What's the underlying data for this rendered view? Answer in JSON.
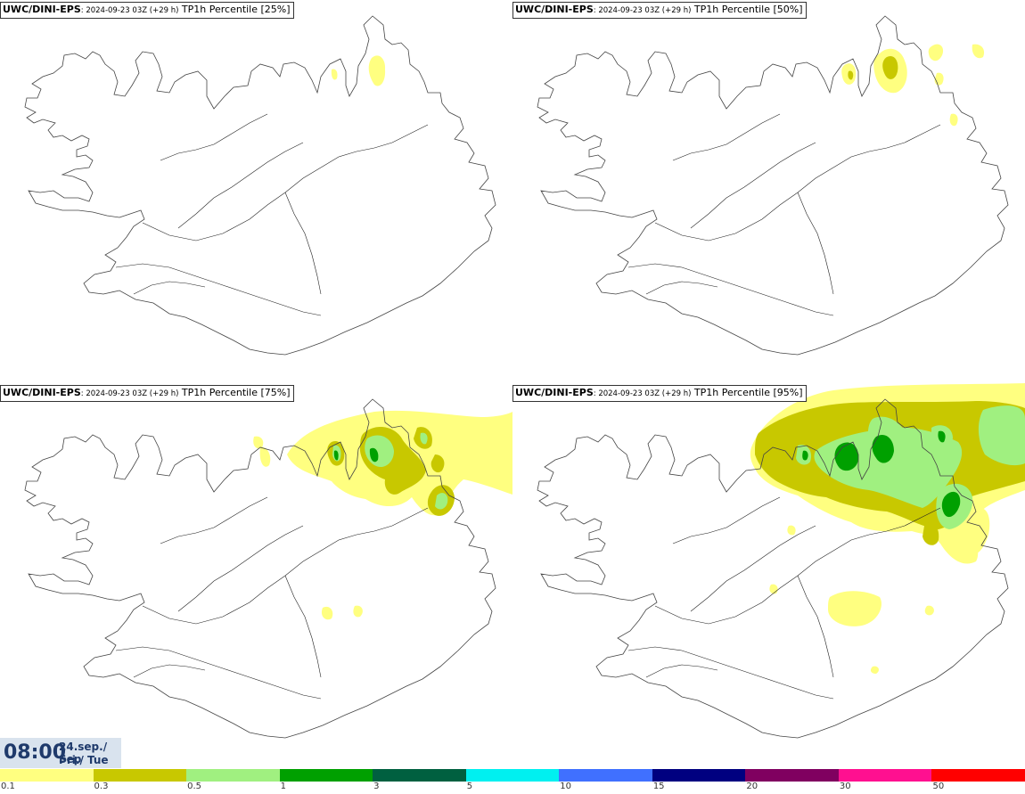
{
  "panels": [
    {
      "model": "UWC/DINI-EPS",
      "run": ": 2024-09-23 03Z (+29 h)",
      "field": " TP1h Percentile [25%]"
    },
    {
      "model": "UWC/DINI-EPS",
      "run": ": 2024-09-23 03Z (+29 h)",
      "field": " TP1h Percentile [50%]"
    },
    {
      "model": "UWC/DINI-EPS",
      "run": ": 2024-09-23 03Z (+29 h)",
      "field": " TP1h Percentile [75%]"
    },
    {
      "model": "UWC/DINI-EPS",
      "run": ": 2024-09-23 03Z (+29 h)",
      "field": " TP1h Percentile [95%]"
    }
  ],
  "valid_time": {
    "time": "08:00",
    "date": "24.sep./ Sep",
    "weekday": "Þri./ Tue"
  },
  "colorbar": {
    "colors": [
      "#ffff80",
      "#c8c800",
      "#a0f080",
      "#00a000",
      "#006040",
      "#00f0f0",
      "#4070ff",
      "#000080",
      "#800060",
      "#ff1090",
      "#ff0000"
    ],
    "ticks": [
      "0.1",
      "0.3",
      "0.5",
      "1",
      "3",
      "5",
      "10",
      "15",
      "20",
      "30",
      "50"
    ]
  },
  "map_style": {
    "coast": "#444444",
    "roads": "#222222"
  }
}
